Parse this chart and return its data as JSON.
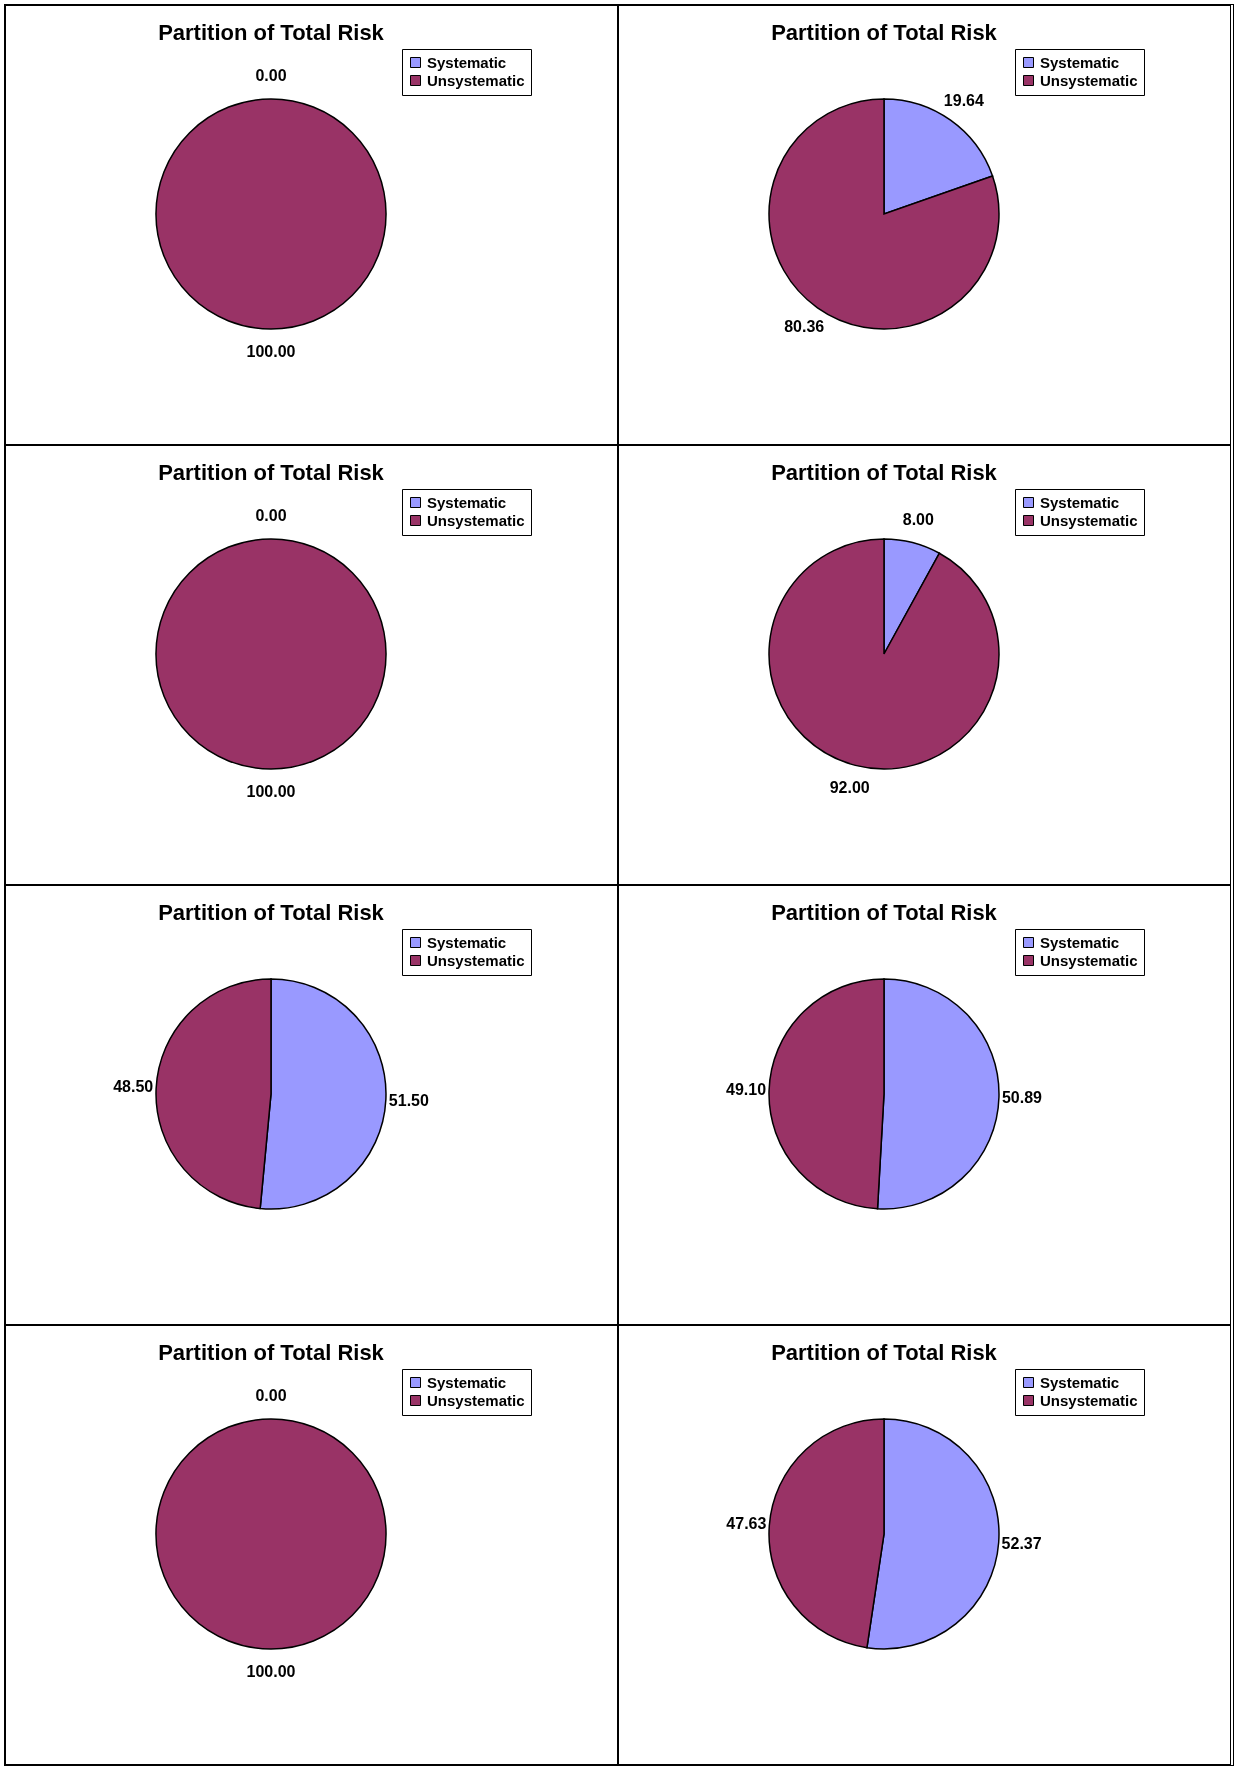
{
  "chart_data": [
    {
      "type": "pie",
      "title": "Partition of Total Risk",
      "categories": [
        "Systematic",
        "Unsystematic"
      ],
      "values": [
        0,
        100
      ],
      "value_labels": [
        "0.00",
        "100.00"
      ],
      "colors": [
        "#9999ff",
        "#993366"
      ],
      "legend": "top right"
    },
    {
      "type": "pie",
      "title": "Partition of Total Risk",
      "categories": [
        "Systematic",
        "Unsystematic"
      ],
      "values": [
        19.64,
        80.36
      ],
      "value_labels": [
        "19.64",
        "80.36"
      ],
      "colors": [
        "#9999ff",
        "#993366"
      ],
      "legend": "top right"
    },
    {
      "type": "pie",
      "title": "Partition of Total Risk",
      "categories": [
        "Systematic",
        "Unsystematic"
      ],
      "values": [
        0,
        100
      ],
      "value_labels": [
        "0.00",
        "100.00"
      ],
      "colors": [
        "#9999ff",
        "#993366"
      ],
      "legend": "top right"
    },
    {
      "type": "pie",
      "title": "Partition of Total Risk",
      "categories": [
        "Systematic",
        "Unsystematic"
      ],
      "values": [
        8,
        92
      ],
      "value_labels": [
        "8.00",
        "92.00"
      ],
      "colors": [
        "#9999ff",
        "#993366"
      ],
      "legend": "top right"
    },
    {
      "type": "pie",
      "title": "Partition of Total Risk",
      "categories": [
        "Systematic",
        "Unsystematic"
      ],
      "values": [
        51.5,
        48.5
      ],
      "value_labels": [
        "51.50",
        "48.50"
      ],
      "colors": [
        "#9999ff",
        "#993366"
      ],
      "legend": "top right"
    },
    {
      "type": "pie",
      "title": "Partition of Total Risk",
      "categories": [
        "Systematic",
        "Unsystematic"
      ],
      "values": [
        50.89,
        49.1
      ],
      "value_labels": [
        "50.89",
        "49.10"
      ],
      "colors": [
        "#9999ff",
        "#993366"
      ],
      "legend": "top right"
    },
    {
      "type": "pie",
      "title": "Partition of Total Risk",
      "categories": [
        "Systematic",
        "Unsystematic"
      ],
      "values": [
        0,
        100
      ],
      "value_labels": [
        "0.00",
        "100.00"
      ],
      "colors": [
        "#9999ff",
        "#993366"
      ],
      "legend": "top right"
    },
    {
      "type": "pie",
      "title": "Partition of Total Risk",
      "categories": [
        "Systematic",
        "Unsystematic"
      ],
      "values": [
        52.37,
        47.63
      ],
      "value_labels": [
        "52.37",
        "47.63"
      ],
      "colors": [
        "#9999ff",
        "#993366"
      ],
      "legend": "top right"
    }
  ]
}
